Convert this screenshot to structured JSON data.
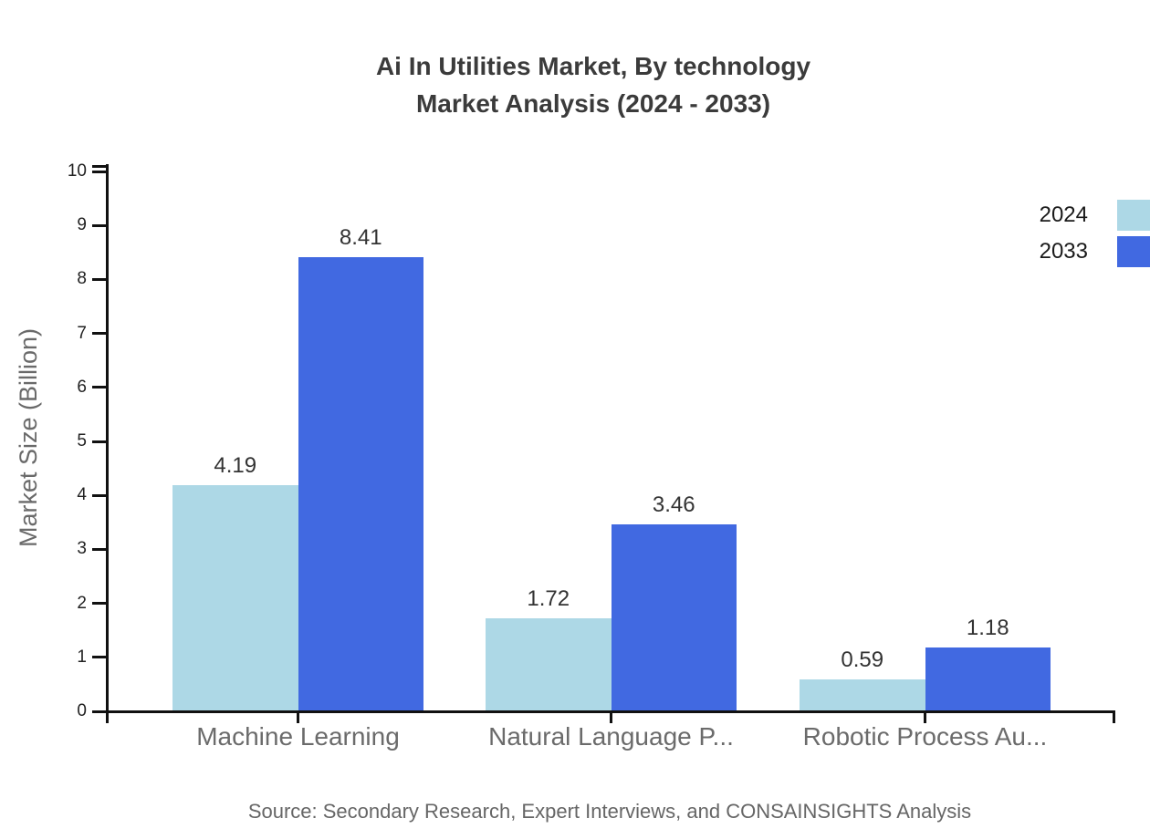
{
  "title": {
    "line1": "Ai In Utilities Market, By technology",
    "line2": "Market Analysis (2024 - 2033)"
  },
  "legend": [
    {
      "label": "2024",
      "color": "#ADD8E6"
    },
    {
      "label": "2033",
      "color": "#4169E1"
    }
  ],
  "source": "Source: Secondary Research, Expert Interviews, and CONSAINSIGHTS Analysis",
  "colors": {
    "title_text": "#3b3b3b",
    "axis": "#111111",
    "tick_label": "#222222",
    "value_label": "#333333",
    "category_label": "#6b6b6b",
    "gray_text": "#666666"
  },
  "chart_data": {
    "type": "bar",
    "title": "Ai In Utilities Market, By technology Market Analysis (2024 - 2033)",
    "categories": [
      "Machine Learning",
      "Natural Language P...",
      "Robotic Process Au..."
    ],
    "series": [
      {
        "name": "2024",
        "color": "#ADD8E6",
        "values": [
          4.19,
          1.72,
          0.59
        ]
      },
      {
        "name": "2033",
        "color": "#4169E1",
        "values": [
          8.41,
          3.46,
          1.18
        ]
      }
    ],
    "xlabel": "",
    "ylabel": "Market Size (Billion)",
    "ylim": [
      0,
      10
    ],
    "yticks": [
      0,
      1,
      2,
      3,
      4,
      5,
      6,
      7,
      8,
      9,
      10
    ],
    "grid": false,
    "legend_position": "top-right",
    "value_labels": true
  }
}
